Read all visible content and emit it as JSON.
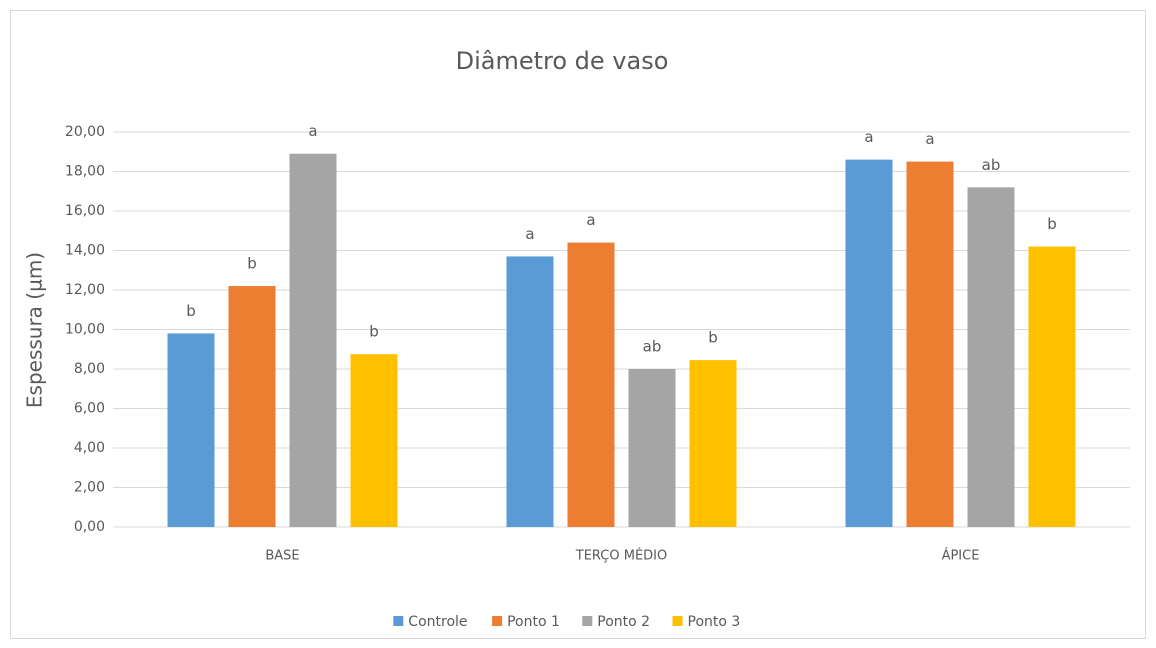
{
  "chart_data": {
    "type": "bar",
    "title": "Diâmetro de vaso",
    "y_label": "Espessura (µm)",
    "categories": [
      "BASE",
      "TERÇO MÉDIO",
      "ÁPICE"
    ],
    "series": [
      {
        "name": "Controle",
        "color": "#5b9bd5",
        "values": [
          9.8,
          13.7,
          18.6
        ],
        "annotations": [
          "b",
          "a",
          "a"
        ]
      },
      {
        "name": "Ponto 1",
        "color": "#ed7d31",
        "values": [
          12.2,
          14.4,
          18.5
        ],
        "annotations": [
          "b",
          "a",
          "a"
        ]
      },
      {
        "name": "Ponto 2",
        "color": "#a5a5a5",
        "values": [
          18.9,
          8.0,
          17.2
        ],
        "annotations": [
          "a",
          "ab",
          "ab"
        ]
      },
      {
        "name": "Ponto 3",
        "color": "#ffc000",
        "values": [
          8.75,
          8.45,
          14.2
        ],
        "annotations": [
          "b",
          "b",
          "b"
        ]
      }
    ],
    "ylim": [
      0,
      20
    ],
    "yticks": [
      {
        "value": 0,
        "label": "0,00"
      },
      {
        "value": 2,
        "label": "2,00"
      },
      {
        "value": 4,
        "label": "4,00"
      },
      {
        "value": 6,
        "label": "6,00"
      },
      {
        "value": 8,
        "label": "8,00"
      },
      {
        "value": 10,
        "label": "10,00"
      },
      {
        "value": 12,
        "label": "12,00"
      },
      {
        "value": 14,
        "label": "14,00"
      },
      {
        "value": 16,
        "label": "16,00"
      },
      {
        "value": 18,
        "label": "18,00"
      },
      {
        "value": 20,
        "label": "20,00"
      }
    ],
    "grid": true,
    "legend": "bottom"
  }
}
